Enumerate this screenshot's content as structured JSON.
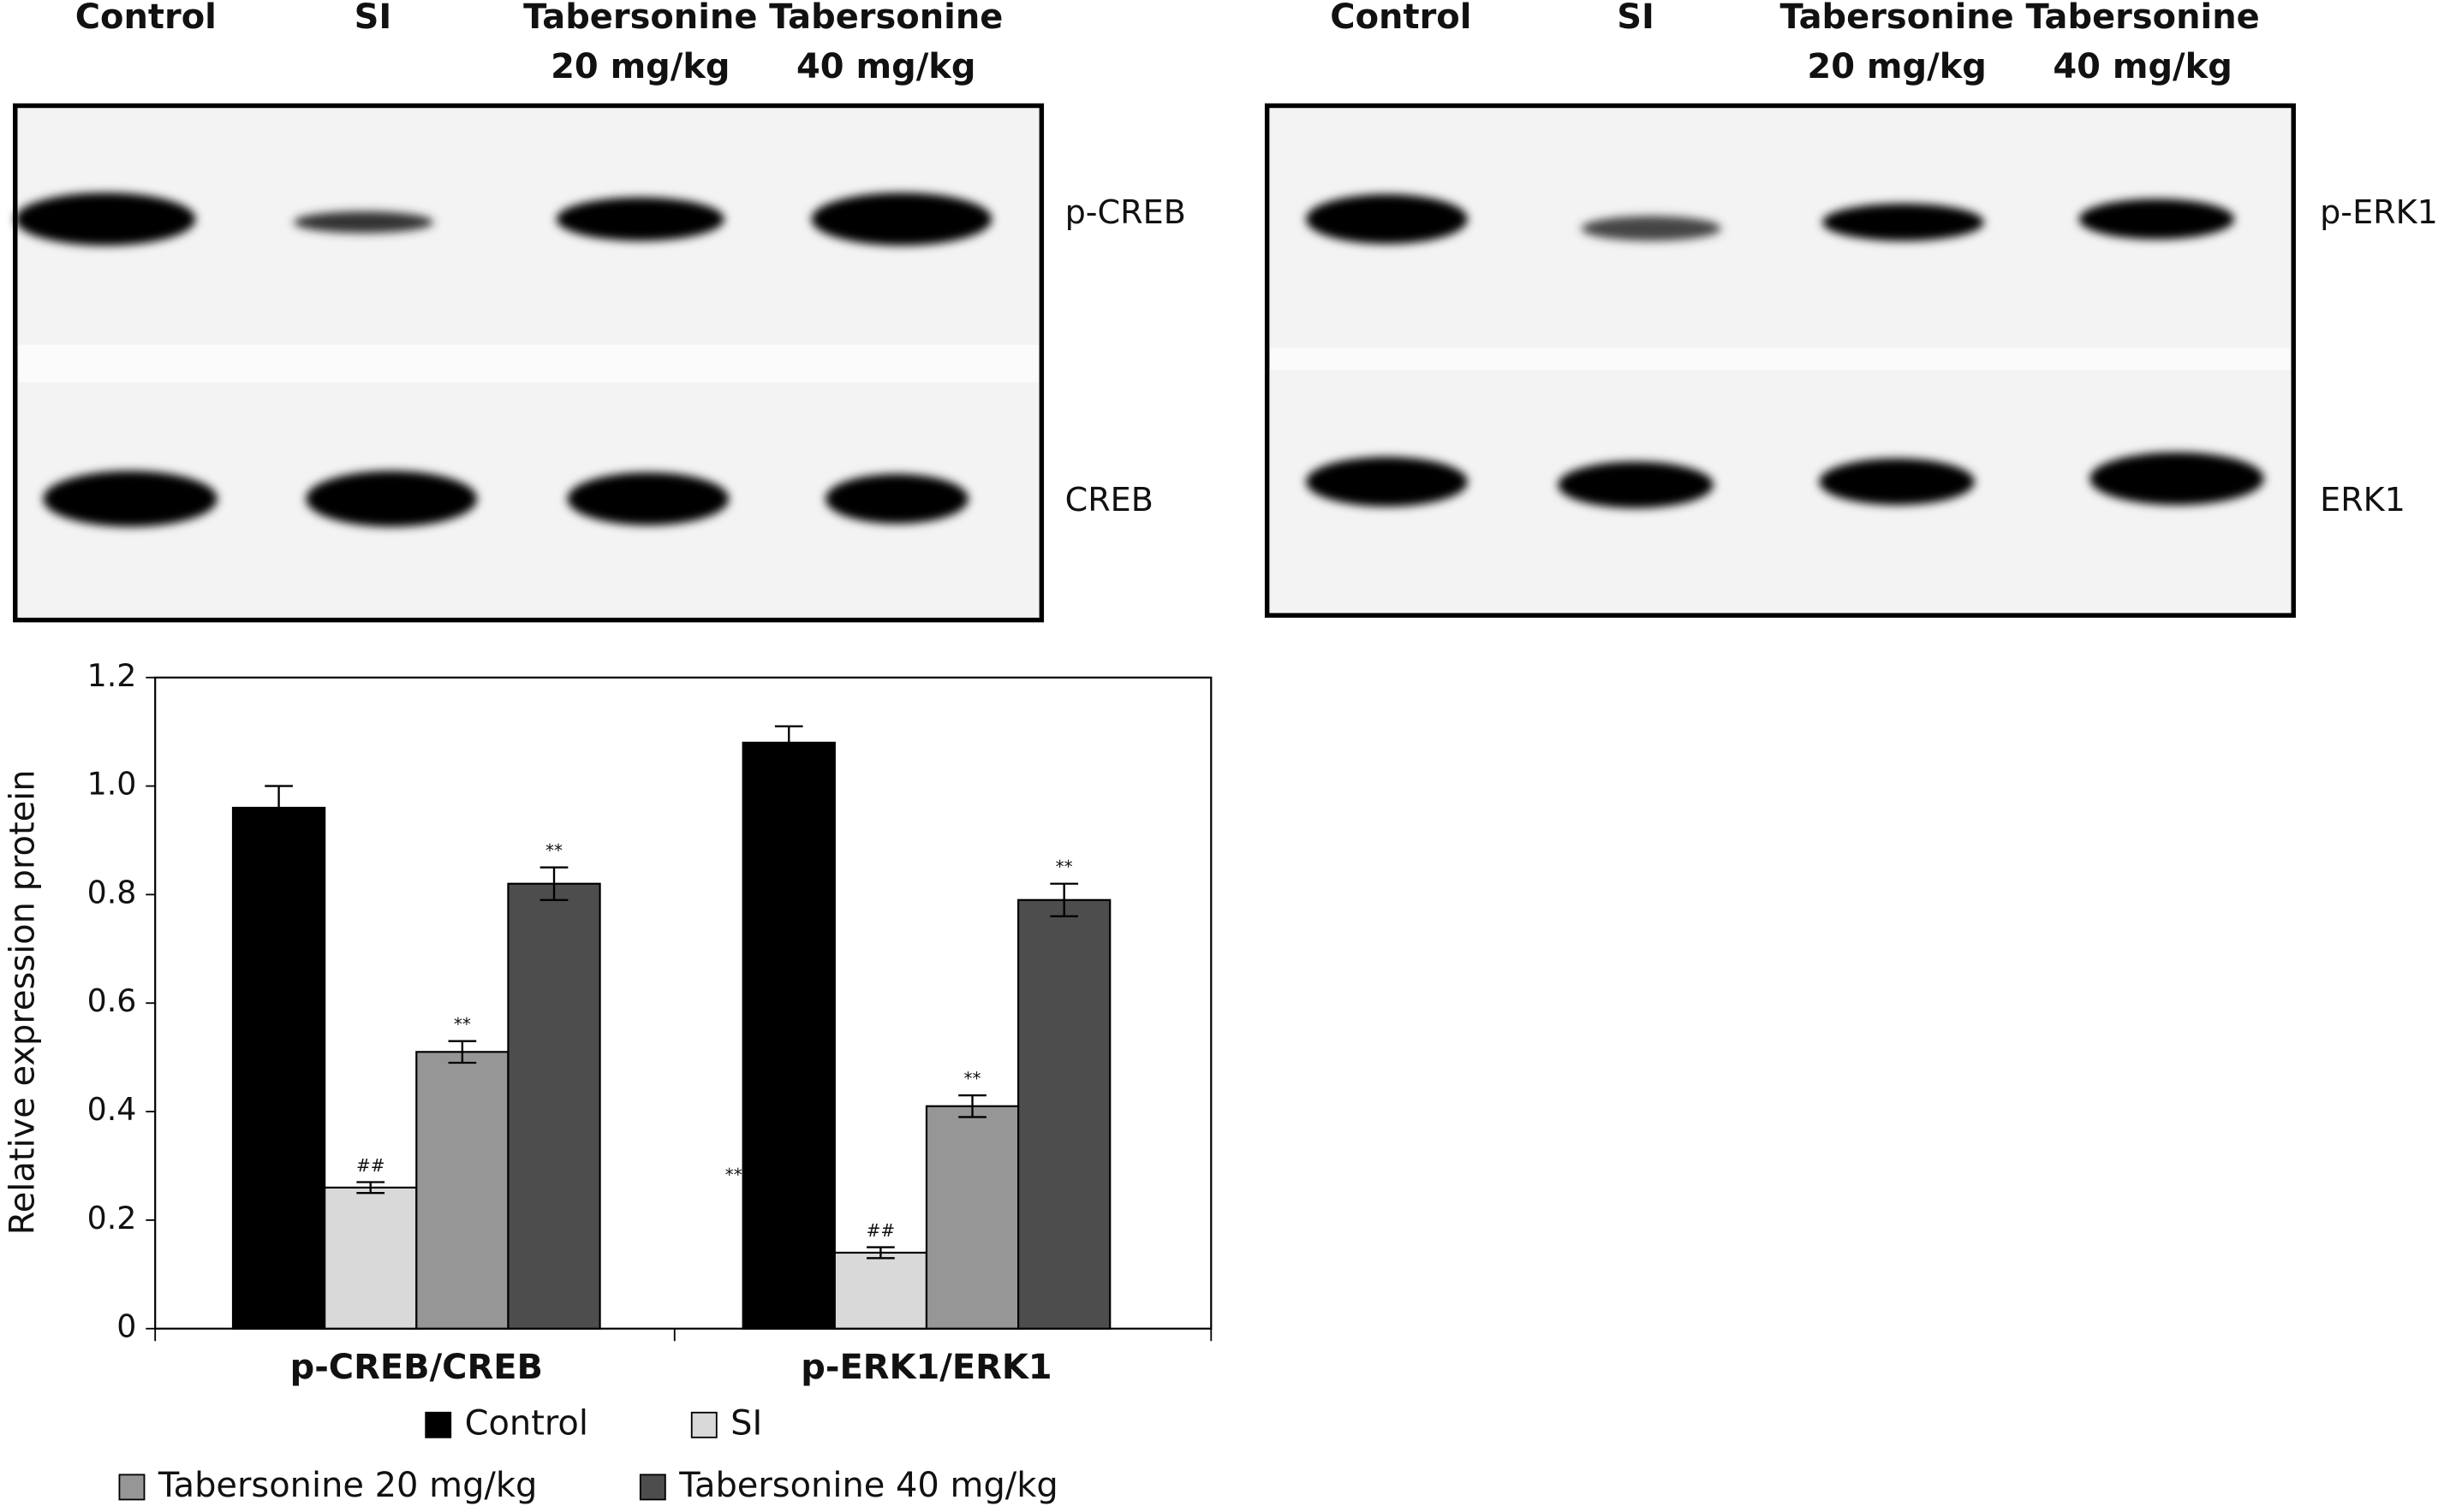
{
  "blots": [
    {
      "lanes": [
        [
          "Control"
        ],
        [
          "SI"
        ],
        [
          "Tabersonine",
          "20 mg/kg"
        ],
        [
          "Tabersonine",
          "40 mg/kg"
        ]
      ],
      "bands": [
        "p-CREB",
        "CREB"
      ]
    },
    {
      "lanes": [
        [
          "Control"
        ],
        [
          "SI"
        ],
        [
          "Tabersonine",
          "20 mg/kg"
        ],
        [
          "Tabersonine",
          "40 mg/kg"
        ]
      ],
      "bands": [
        "p-ERK1",
        "ERK1"
      ]
    }
  ],
  "chart_data": {
    "type": "bar",
    "ylabel": "Relative expression protein",
    "categories": [
      "p-CREB/CREB",
      "p-ERK1/ERK1"
    ],
    "series": [
      {
        "name": "Control",
        "color": "#000000",
        "values": [
          0.96,
          1.08
        ],
        "errors": [
          0.04,
          0.03
        ]
      },
      {
        "name": "SI",
        "color": "#d9d9d9",
        "values": [
          0.26,
          0.14
        ],
        "errors": [
          0.01,
          0.01
        ]
      },
      {
        "name": "Tabersonine 20 mg/kg",
        "color": "#969696",
        "values": [
          0.51,
          0.41
        ],
        "errors": [
          0.02,
          0.02
        ]
      },
      {
        "name": "Tabersonine 40 mg/kg",
        "color": "#4d4d4d",
        "values": [
          0.82,
          0.79
        ],
        "errors": [
          0.03,
          0.03
        ]
      }
    ],
    "annotations": [
      {
        "series": 1,
        "category": 0,
        "text": "##"
      },
      {
        "series": 2,
        "category": 0,
        "text": "**"
      },
      {
        "series": 3,
        "category": 0,
        "text": "**"
      },
      {
        "series": 1,
        "category": 1,
        "text": "##"
      },
      {
        "series": 2,
        "category": 1,
        "text": "**"
      },
      {
        "series": 3,
        "category": 1,
        "text": "**"
      },
      {
        "category": 1,
        "text": "**"
      }
    ],
    "ylim": [
      0,
      1.2
    ],
    "yticks": [
      0,
      0.2,
      0.4,
      0.6,
      0.8,
      {
        "value": 1,
        "label": "1.0"
      },
      1.2
    ],
    "legend": "bottom",
    "grid": false
  }
}
